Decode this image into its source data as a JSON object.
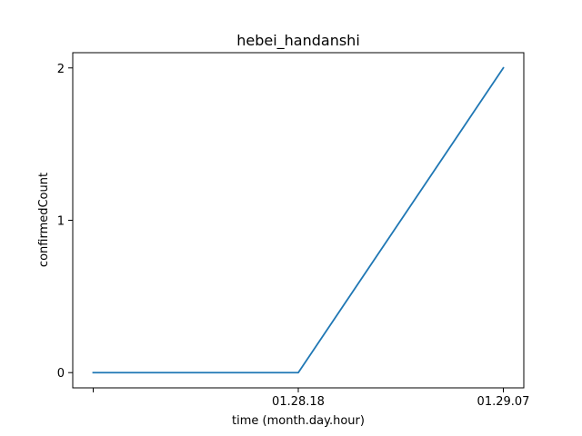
{
  "chart_data": {
    "type": "line",
    "title": "hebei_handanshi",
    "xlabel": "time (month.day.hour)",
    "ylabel": "confirmedCount",
    "x": [
      "",
      "01.28.18",
      "01.29.07"
    ],
    "series": [
      {
        "values": [
          0,
          0,
          2
        ],
        "color": "#1f77b4"
      }
    ],
    "ylim": [
      -0.1,
      2.1
    ],
    "yticks": [
      0,
      1,
      2
    ],
    "ytick_labels": [
      "0",
      "1",
      "2"
    ],
    "xtick_labels": [
      "",
      "01.28.18",
      "01.29.07"
    ],
    "grid": false,
    "legend": "none"
  }
}
